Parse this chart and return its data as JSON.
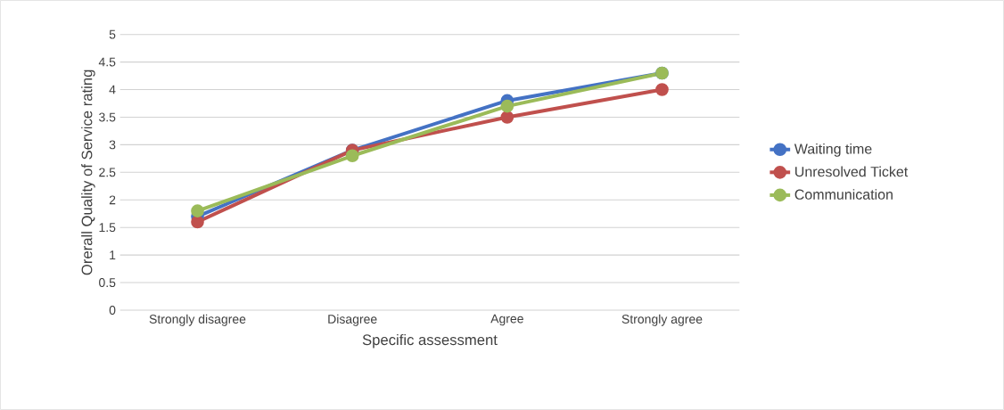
{
  "chart_data": {
    "type": "line",
    "xlabel": "Specific assessment",
    "ylabel": "Orerall Quality of Service rating",
    "categories": [
      "Strongly disagree",
      "Disagree",
      "Agree",
      "Strongly agree"
    ],
    "series": [
      {
        "name": "Waiting time",
        "color": "#4472c4",
        "values": [
          1.7,
          2.9,
          3.8,
          4.3
        ]
      },
      {
        "name": "Unresolved Ticket",
        "color": "#c0504d",
        "values": [
          1.6,
          2.9,
          3.5,
          4.0
        ]
      },
      {
        "name": "Communication",
        "color": "#9bbb59",
        "values": [
          1.8,
          2.8,
          3.7,
          4.3
        ]
      }
    ],
    "ylim": [
      0,
      5
    ],
    "yticks": [
      0,
      0.5,
      1,
      1.5,
      2,
      2.5,
      3,
      3.5,
      4,
      4.5,
      5
    ],
    "grid": "y",
    "legend": "right",
    "marker": "circle",
    "line_style": "solid"
  }
}
